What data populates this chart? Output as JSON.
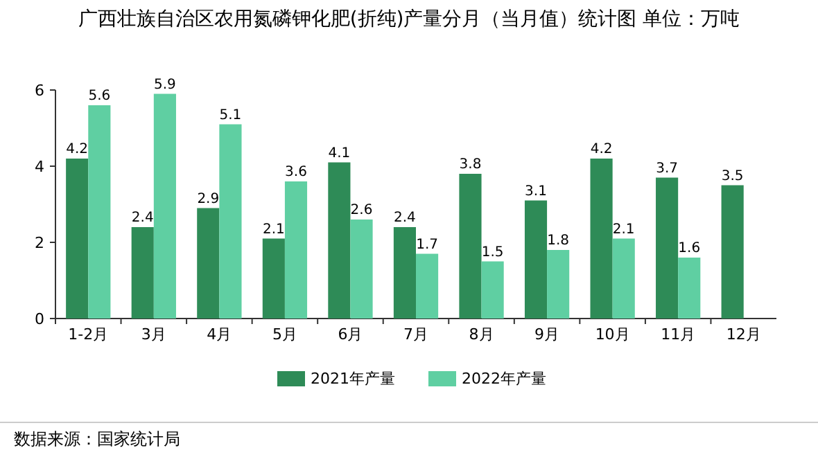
{
  "chart_data": {
    "type": "bar",
    "title": "广西壮族自治区农用氮磷钾化肥(折纯)产量分月（当月值）统计图 单位：万吨",
    "categories": [
      "1-2月",
      "3月",
      "4月",
      "5月",
      "6月",
      "7月",
      "8月",
      "9月",
      "10月",
      "11月",
      "12月"
    ],
    "series": [
      {
        "name": "2021年产量",
        "color": "#2e8b57",
        "values": [
          4.2,
          2.4,
          2.9,
          2.1,
          4.1,
          2.4,
          3.8,
          3.1,
          4.2,
          3.7,
          3.5
        ]
      },
      {
        "name": "2022年产量",
        "color": "#5fcfa2",
        "values": [
          5.6,
          5.9,
          5.1,
          3.6,
          2.6,
          1.7,
          1.5,
          1.8,
          2.1,
          1.6,
          null
        ]
      }
    ],
    "ylim": [
      0,
      6
    ],
    "yticks": [
      0,
      2,
      4,
      6
    ],
    "data_labels": true,
    "legend": "bottom",
    "annotations": [
      "数据来源：国家统计局"
    ]
  }
}
